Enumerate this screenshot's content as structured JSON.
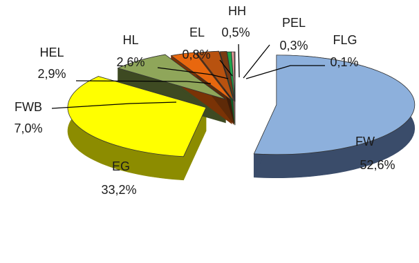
{
  "chart_data": {
    "type": "pie",
    "title": "",
    "legend": "none",
    "slices": [
      {
        "name": "FW",
        "value": 52.6,
        "name_label": "FW",
        "value_label": "52,6%",
        "color": "#8DB0DC",
        "side": "#3A4C6A"
      },
      {
        "name": "EG",
        "value": 33.2,
        "name_label": "EG",
        "value_label": "33,2%",
        "color": "#FFFF00",
        "side": "#8C8C00"
      },
      {
        "name": "FWB",
        "value": 7.0,
        "name_label": "FWB",
        "value_label": "7,0%",
        "color": "#8FA65A",
        "side": "#3E4A22"
      },
      {
        "name": "HEL",
        "value": 2.9,
        "name_label": "HEL",
        "value_label": "2,9%",
        "color": "#E8670E",
        "side": "#7A3306"
      },
      {
        "name": "HL",
        "value": 2.6,
        "name_label": "HL",
        "value_label": "2,6%",
        "color": "#B8520F",
        "side": "#5E2A08"
      },
      {
        "name": "EL",
        "value": 0.8,
        "name_label": "EL",
        "value_label": "0,8%",
        "color": "#7A3A12",
        "side": "#3C1D09"
      },
      {
        "name": "HH",
        "value": 0.5,
        "name_label": "HH",
        "value_label": "0,5%",
        "color": "#1EA34A",
        "side": "#0E5A26"
      },
      {
        "name": "PEL",
        "value": 0.3,
        "name_label": "PEL",
        "value_label": "0,3%",
        "color": "#F2A0A0",
        "side": "#7E4848"
      },
      {
        "name": "FLG",
        "value": 0.1,
        "name_label": "FLG",
        "value_label": "0,1%",
        "color": "#C0C0C0",
        "side": "#606060"
      }
    ]
  }
}
